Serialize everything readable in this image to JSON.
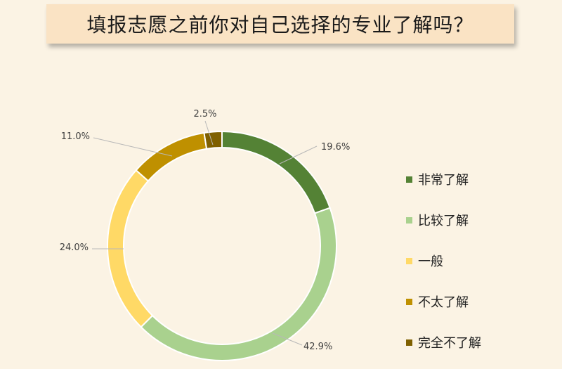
{
  "title": "填报志愿之前你对自己选择的专业了解吗？",
  "chart_data": {
    "type": "pie",
    "variant": "donut",
    "title": "填报志愿之前你对自己选择的专业了解吗？",
    "legend_position": "right",
    "series": [
      {
        "name": "非常了解",
        "value": 19.6,
        "label": "19.6%",
        "color": "#548235"
      },
      {
        "name": "比较了解",
        "value": 42.9,
        "label": "42.9%",
        "color": "#a9d18e"
      },
      {
        "name": "一般",
        "value": 24.0,
        "label": "24.0%",
        "color": "#ffd966"
      },
      {
        "name": "不太了解",
        "value": 11.0,
        "label": "11.0%",
        "color": "#bf9000"
      },
      {
        "name": "完全不了解",
        "value": 2.5,
        "label": "2.5%",
        "color": "#7f6000"
      }
    ]
  }
}
